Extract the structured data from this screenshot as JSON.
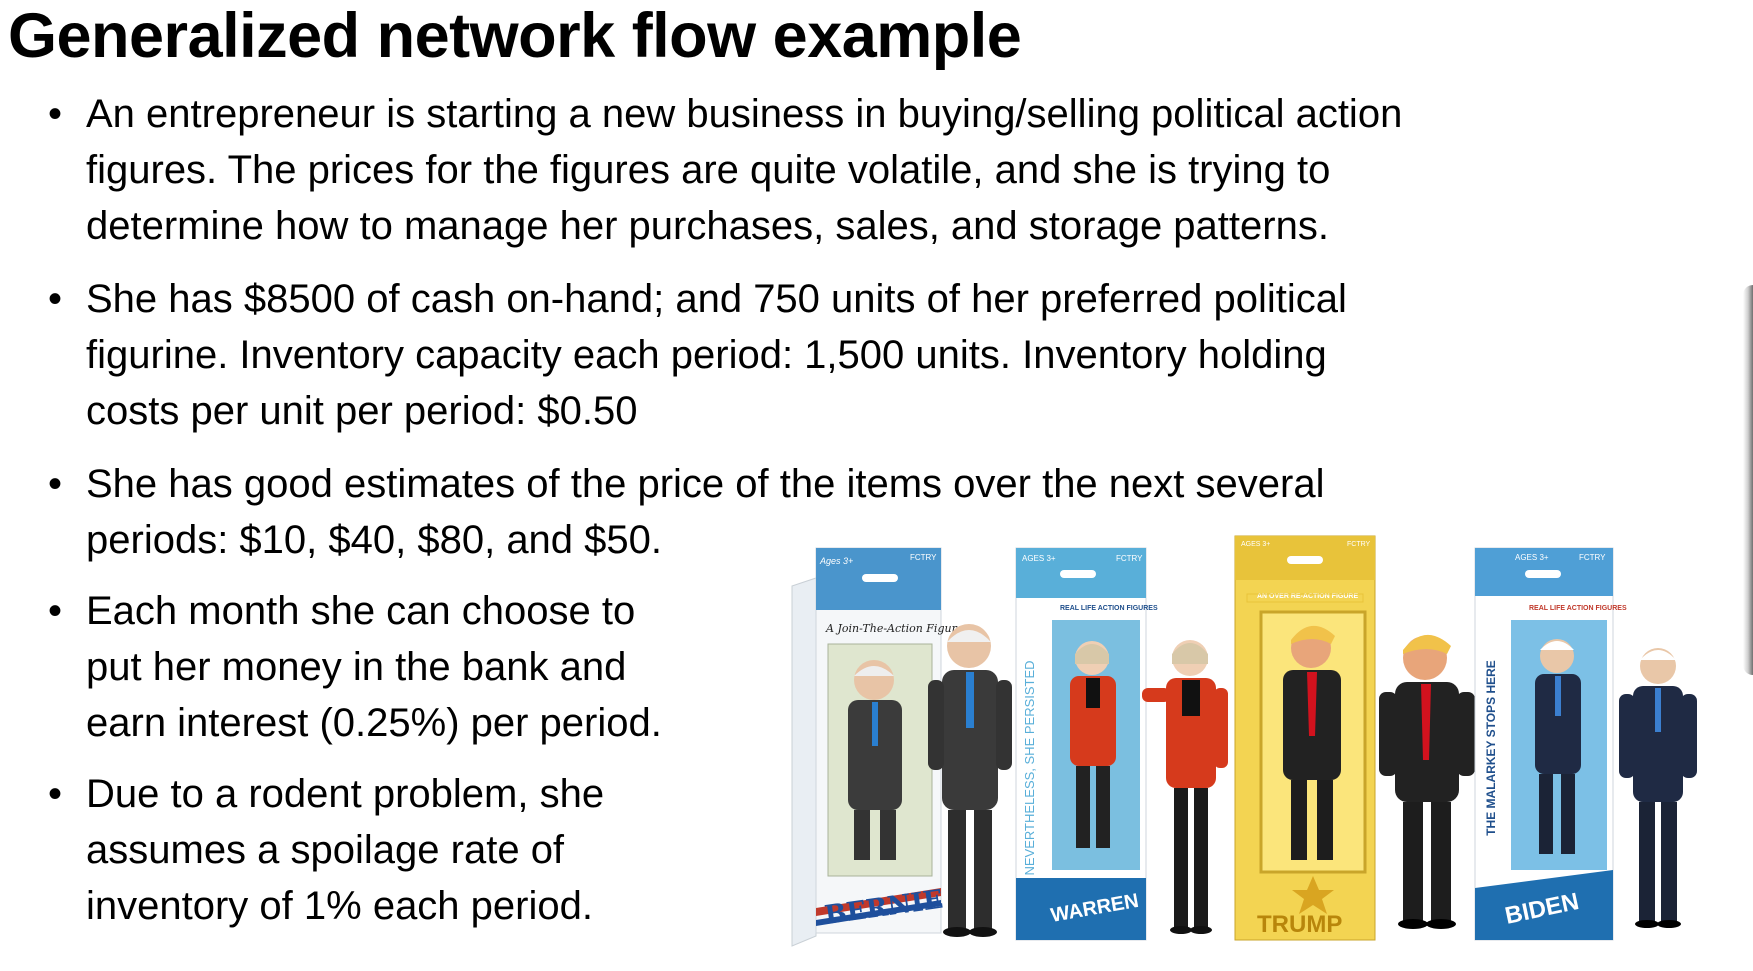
{
  "slide": {
    "title": "Generalized network flow example",
    "bullets": [
      {
        "lines": [
          "An entrepreneur is starting a new business in buying/selling political action",
          "figures.   The prices for the figures are quite volatile, and she is trying to",
          "determine how to manage her purchases, sales, and storage patterns."
        ]
      },
      {
        "lines": [
          "She has $8500 of cash on-hand; and 750 units of her preferred political",
          "figurine.  Inventory capacity each period: 1,500 units.  Inventory holding",
          "costs per unit per period: $0.50"
        ]
      },
      {
        "lines": [
          "She has good estimates of the price of the items over the next several",
          "periods: $10, $40, $80, and $50."
        ]
      },
      {
        "lines": [
          "Each month she can choose to",
          "put her money in the bank and",
          "earn interest (0.25%) per period."
        ]
      },
      {
        "lines": [
          "Due to a rodent problem, she",
          "assumes a spoilage rate of",
          "inventory of 1% each period."
        ]
      }
    ]
  },
  "figures": [
    {
      "name": "BERNIE",
      "ages": "Ages 3+",
      "brand": "FCTRY",
      "tagline": "A Join-The-Action Figure",
      "side_text": "",
      "box_color": "#ffffff",
      "accent": "#1e73b4",
      "suit": "#3a3a3a",
      "tie": "#2a7fd0"
    },
    {
      "name": "WARREN",
      "ages": "AGES 3+",
      "brand": "FCTRY",
      "tagline": "REAL LIFE ACTION FIGURES",
      "side_text": "NEVERTHELESS, SHE PERSISTED",
      "box_color": "#ffffff",
      "accent": "#49a7d4",
      "suit": "#d63a1c",
      "tie": "#111111"
    },
    {
      "name": "TRUMP",
      "ages": "AGES 3+",
      "brand": "FCTRY",
      "tagline": "AN OVER RE-ACTION FIGURE",
      "side_text": "",
      "box_color": "#f1d14a",
      "accent": "#d9a521",
      "suit": "#222222",
      "tie": "#d2121e"
    },
    {
      "name": "BIDEN",
      "ages": "AGES 3+",
      "brand": "FCTRY",
      "tagline": "REAL LIFE ACTION FIGURES",
      "side_text": "THE MALARKEY STOPS HERE",
      "box_color": "#ffffff",
      "accent": "#2d86c8",
      "suit": "#1f2a44",
      "tie": "#3b7fd0"
    }
  ]
}
